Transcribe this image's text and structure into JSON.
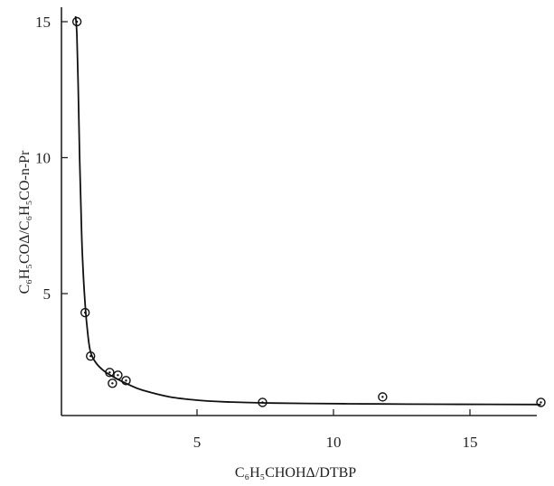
{
  "chart_data": {
    "type": "scatter",
    "xlabel": "C₆H₅CHOHΔ/DTBP",
    "ylabel": "C₆H₅COΔ/C₆H₅CO-n-Pr",
    "xlim": [
      0,
      18
    ],
    "ylim": [
      0,
      15.5
    ],
    "grid": false,
    "x_ticks": [
      5,
      10,
      15
    ],
    "y_ticks": [
      5,
      10,
      15
    ],
    "tick_labels_x": [
      "5",
      "10",
      "15"
    ],
    "tick_labels_y": [
      "5",
      "10",
      "15"
    ],
    "points": [
      {
        "x": 0.6,
        "y": 15.0
      },
      {
        "x": 0.9,
        "y": 4.3
      },
      {
        "x": 1.1,
        "y": 2.7
      },
      {
        "x": 1.8,
        "y": 2.1
      },
      {
        "x": 1.9,
        "y": 1.7
      },
      {
        "x": 2.1,
        "y": 2.0
      },
      {
        "x": 2.4,
        "y": 1.8
      },
      {
        "x": 7.4,
        "y": 1.0
      },
      {
        "x": 11.8,
        "y": 1.2
      },
      {
        "x": 17.6,
        "y": 1.0
      }
    ],
    "fit_curve": [
      [
        0.55,
        15.2
      ],
      [
        0.6,
        14.5
      ],
      [
        0.65,
        12.5
      ],
      [
        0.7,
        10.0
      ],
      [
        0.75,
        8.0
      ],
      [
        0.8,
        6.4
      ],
      [
        0.9,
        4.6
      ],
      [
        1.0,
        3.5
      ],
      [
        1.1,
        2.85
      ],
      [
        1.3,
        2.45
      ],
      [
        1.6,
        2.15
      ],
      [
        2.0,
        1.9
      ],
      [
        2.5,
        1.65
      ],
      [
        3.0,
        1.45
      ],
      [
        4.0,
        1.2
      ],
      [
        5.0,
        1.08
      ],
      [
        6.0,
        1.02
      ],
      [
        7.4,
        0.98
      ],
      [
        9.0,
        0.96
      ],
      [
        11.8,
        0.94
      ],
      [
        14.0,
        0.93
      ],
      [
        17.6,
        0.92
      ]
    ]
  }
}
